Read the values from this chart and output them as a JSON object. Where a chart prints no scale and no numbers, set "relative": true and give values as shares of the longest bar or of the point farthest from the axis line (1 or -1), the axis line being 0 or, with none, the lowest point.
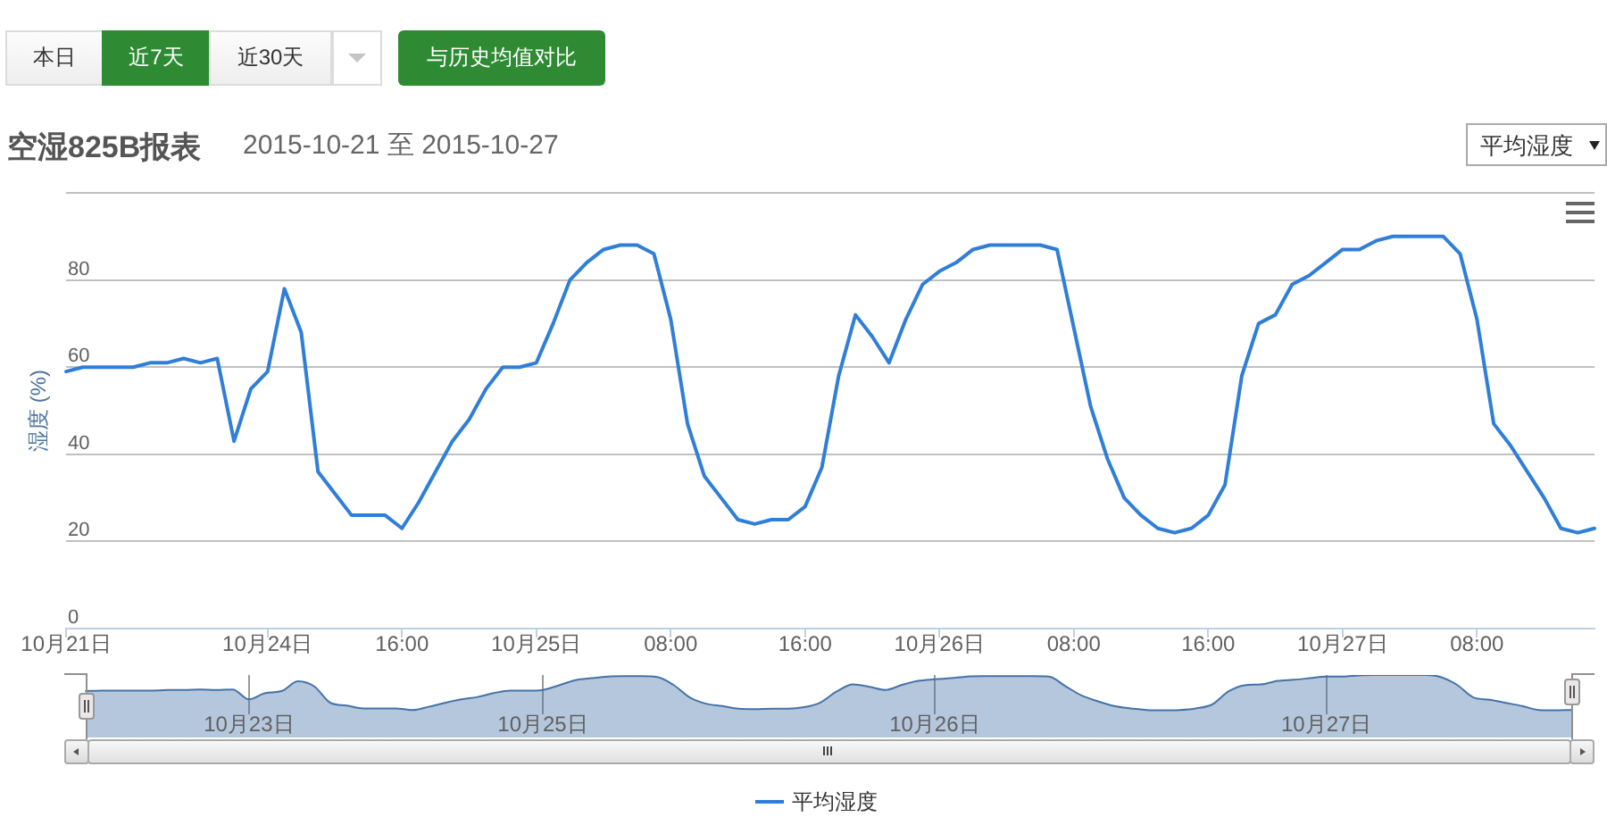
{
  "chart_data": [
    {
      "type": "line",
      "title": "空湿825B报表",
      "subtitle": "2015-10-21 至 2015-10-27",
      "ylabel": "湿度 (%)",
      "annotations": [
        "本日",
        "近7天",
        "近30天",
        "与历史均值对比"
      ],
      "categories": [
        "10月21日",
        null,
        null,
        null,
        null,
        null,
        null,
        null,
        null,
        null,
        null,
        null,
        "10月24日",
        null,
        null,
        null,
        null,
        null,
        null,
        null,
        "16:00",
        null,
        null,
        null,
        null,
        null,
        null,
        null,
        "10月25日",
        null,
        null,
        null,
        null,
        null,
        null,
        null,
        "08:00",
        null,
        null,
        null,
        null,
        null,
        null,
        null,
        "16:00",
        null,
        null,
        null,
        null,
        null,
        null,
        null,
        "10月26日",
        null,
        null,
        null,
        null,
        null,
        null,
        null,
        "08:00",
        null,
        null,
        null,
        null,
        null,
        null,
        null,
        "16:00",
        null,
        null,
        null,
        null,
        null,
        null,
        null,
        "10月27日",
        null,
        null,
        null,
        null,
        null,
        null,
        null,
        "08:00",
        null,
        null,
        null,
        null,
        null,
        null,
        null
      ],
      "series": [
        {
          "name": "平均湿度",
          "color": "#2f7ed8",
          "values": [
            59,
            60,
            60,
            60,
            60,
            61,
            61,
            62,
            61,
            62,
            43,
            55,
            59,
            78,
            68,
            36,
            31,
            26,
            26,
            26,
            23,
            29,
            36,
            43,
            48,
            55,
            60,
            60,
            61,
            70,
            80,
            84,
            87,
            88,
            88,
            86,
            71,
            47,
            35,
            30,
            25,
            24,
            25,
            25,
            28,
            37,
            58,
            72,
            67,
            61,
            71,
            79,
            82,
            84,
            87,
            88,
            88,
            88,
            88,
            87,
            69,
            51,
            39,
            30,
            26,
            23,
            22,
            23,
            26,
            33,
            58,
            70,
            72,
            79,
            81,
            84,
            87,
            87,
            89,
            90,
            90,
            90,
            90,
            86,
            71,
            47,
            42,
            36,
            30,
            23,
            22,
            23
          ]
        }
      ],
      "ylim": [
        0,
        100
      ],
      "yticks": [
        0,
        20,
        40,
        60,
        80,
        {
          "value": 100,
          "label": null
        }
      ],
      "grid": "y",
      "legend": "bottom",
      "marker": "none"
    },
    {
      "type": "area",
      "relative": true,
      "grid": "x",
      "color": "#4572a7",
      "categories": [
        null,
        null,
        null,
        null,
        null,
        null,
        null,
        null,
        null,
        null,
        "10月23日",
        null,
        null,
        null,
        null,
        null,
        null,
        null,
        null,
        null,
        null,
        null,
        null,
        null,
        null,
        null,
        null,
        null,
        "10月25日",
        null,
        null,
        null,
        null,
        null,
        null,
        null,
        null,
        null,
        null,
        null,
        null,
        null,
        null,
        null,
        null,
        null,
        null,
        null,
        null,
        null,
        null,
        null,
        "10月26日",
        null,
        null,
        null,
        null,
        null,
        null,
        null,
        null,
        null,
        null,
        null,
        null,
        null,
        null,
        null,
        null,
        null,
        null,
        null,
        null,
        null,
        null,
        null,
        "10月27日",
        null,
        null,
        null,
        null,
        null,
        null,
        null,
        null,
        null,
        null,
        null,
        null,
        null,
        null,
        null
      ],
      "values": [
        0.59,
        0.6,
        0.6,
        0.6,
        0.6,
        0.62,
        0.62,
        0.63,
        0.62,
        0.63,
        0.38,
        0.54,
        0.59,
        0.84,
        0.71,
        0.29,
        0.22,
        0.15,
        0.15,
        0.15,
        0.11,
        0.19,
        0.29,
        0.38,
        0.44,
        0.54,
        0.6,
        0.6,
        0.62,
        0.74,
        0.87,
        0.92,
        0.96,
        0.97,
        0.97,
        0.95,
        0.75,
        0.43,
        0.27,
        0.21,
        0.14,
        0.13,
        0.14,
        0.14,
        0.18,
        0.3,
        0.58,
        0.76,
        0.7,
        0.62,
        0.75,
        0.85,
        0.89,
        0.92,
        0.96,
        0.97,
        0.97,
        0.97,
        0.97,
        0.96,
        0.72,
        0.48,
        0.33,
        0.21,
        0.15,
        0.11,
        0.1,
        0.11,
        0.15,
        0.25,
        0.58,
        0.74,
        0.76,
        0.85,
        0.88,
        0.92,
        0.96,
        0.96,
        0.99,
        1,
        1,
        1,
        1,
        0.95,
        0.75,
        0.43,
        0.37,
        0.29,
        0.21,
        0.11,
        0.1,
        0.11
      ]
    }
  ]
}
